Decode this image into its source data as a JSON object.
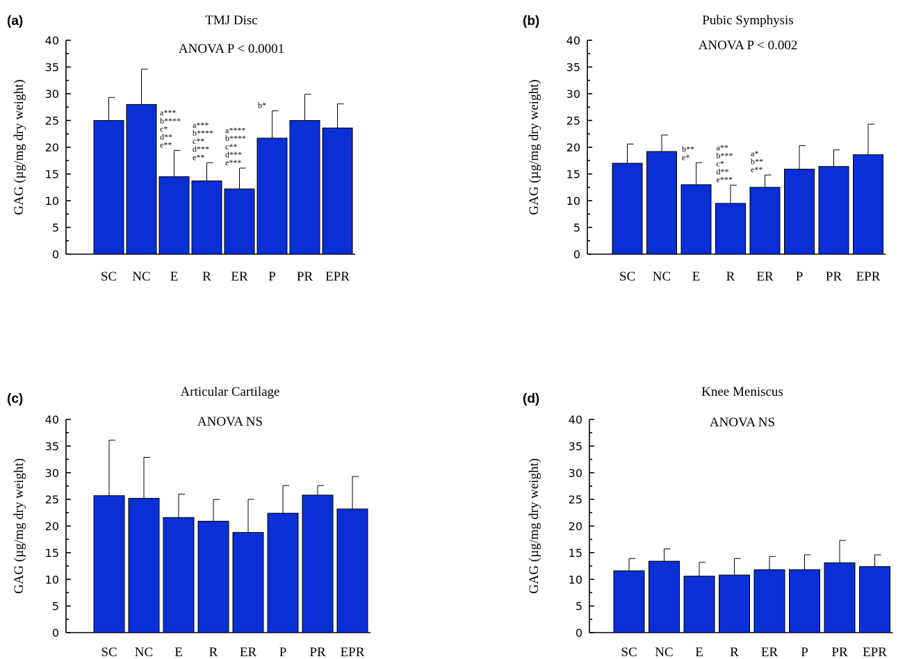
{
  "chart_data": [
    {
      "type": "bar",
      "panel": "(a)",
      "title": "TMJ Disc",
      "subtitle": "ANOVA  P < 0.0001",
      "ylabel": "GAG (µg/mg dry weight)",
      "ylim": [
        0,
        40
      ],
      "yticks": [
        "0",
        "5",
        "10",
        "15",
        "20",
        "25",
        "30",
        "35",
        "40"
      ],
      "categories": [
        "SC",
        "NC",
        "E",
        "R",
        "ER",
        "P",
        "PR",
        "EPR"
      ],
      "values": [
        25,
        28,
        14.5,
        13.7,
        12.2,
        21.7,
        25,
        23.6
      ],
      "errors": [
        4.3,
        6.6,
        4.9,
        3.4,
        3.9,
        5.1,
        4.9,
        4.5
      ],
      "annotations": [
        [],
        [],
        [
          "a***",
          "b****",
          "c*",
          "d**",
          "e**"
        ],
        [
          "a***",
          "b****",
          "c**",
          "d***",
          "e**"
        ],
        [
          "a****",
          "b****",
          "c**",
          "d***",
          "e***"
        ],
        [
          "b*"
        ],
        [],
        []
      ]
    },
    {
      "type": "bar",
      "panel": "(b)",
      "title": "Pubic Symphysis",
      "subtitle": "ANOVA  P < 0.002",
      "ylabel": "GAG (µg/mg dry weight)",
      "ylim": [
        0,
        40
      ],
      "yticks": [
        "0",
        "5",
        "10",
        "15",
        "20",
        "25",
        "30",
        "35",
        "40"
      ],
      "categories": [
        "SC",
        "NC",
        "E",
        "R",
        "ER",
        "P",
        "PR",
        "EPR"
      ],
      "values": [
        17,
        19.2,
        13,
        9.5,
        12.5,
        15.9,
        16.4,
        18.6
      ],
      "errors": [
        3.6,
        3.1,
        4.1,
        3.4,
        2.3,
        4.4,
        3.1,
        5.7
      ],
      "annotations": [
        [],
        [],
        [
          "b**",
          "e*"
        ],
        [
          "a**",
          "b***",
          "c*",
          "d**",
          "e***"
        ],
        [
          "a*",
          "b**",
          "e**"
        ],
        [],
        [],
        []
      ]
    },
    {
      "type": "bar",
      "panel": "(c)",
      "title": "Articular Cartilage",
      "subtitle": "ANOVA  NS",
      "ylabel": "GAG (µg/mg dry weight)",
      "ylim": [
        0,
        40
      ],
      "yticks": [
        "0",
        "5",
        "10",
        "15",
        "20",
        "25",
        "30",
        "35",
        "40"
      ],
      "categories": [
        "SC",
        "NC",
        "E",
        "R",
        "ER",
        "P",
        "PR",
        "EPR"
      ],
      "values": [
        25.7,
        25.2,
        21.6,
        20.9,
        18.8,
        22.4,
        25.8,
        23.2
      ],
      "errors": [
        10.4,
        7.7,
        4.4,
        4.1,
        6.2,
        5.2,
        1.8,
        6.1
      ],
      "annotations": [
        [],
        [],
        [],
        [],
        [],
        [],
        [],
        []
      ]
    },
    {
      "type": "bar",
      "panel": "(d)",
      "title": "Knee Meniscus",
      "subtitle": "ANOVA  NS",
      "ylabel": "GAG (µg/mg dry weight)",
      "ylim": [
        0,
        40
      ],
      "yticks": [
        "0",
        "5",
        "10",
        "15",
        "20",
        "25",
        "30",
        "35",
        "40"
      ],
      "categories": [
        "SC",
        "NC",
        "E",
        "R",
        "ER",
        "P",
        "PR",
        "EPR"
      ],
      "values": [
        11.6,
        13.4,
        10.6,
        10.8,
        11.8,
        11.8,
        13.1,
        12.4
      ],
      "errors": [
        2.3,
        2.3,
        2.6,
        3.1,
        2.5,
        2.8,
        4.2,
        2.2
      ],
      "annotations": [
        [],
        [],
        [],
        [],
        [],
        [],
        [],
        []
      ]
    }
  ]
}
